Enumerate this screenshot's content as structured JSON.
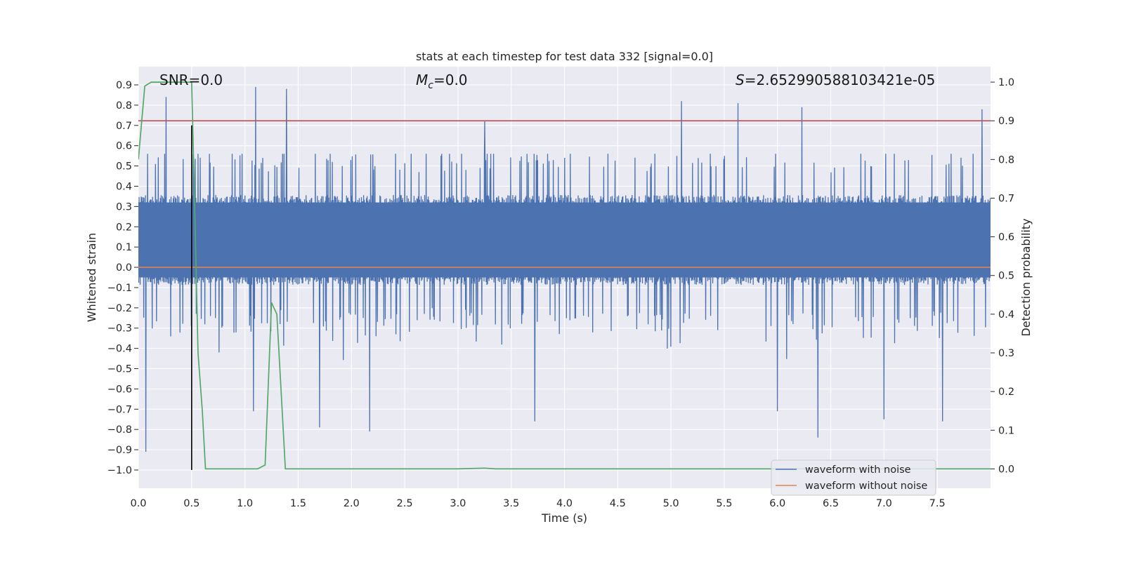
{
  "chart_data": {
    "type": "line",
    "title": "stats at each timestep for test data 332 [signal=0.0]",
    "xlabel": "Time (s)",
    "ylabel": "Whitened strain",
    "y2label": "Detection probability",
    "xlim": [
      0.0,
      8.0
    ],
    "ylim": [
      -1.09,
      0.99
    ],
    "y2lim": [
      -0.05,
      1.04
    ],
    "x_ticks": [
      0.0,
      0.5,
      1.0,
      1.5,
      2.0,
      2.5,
      3.0,
      3.5,
      4.0,
      4.5,
      5.0,
      5.5,
      6.0,
      6.5,
      7.0,
      7.5
    ],
    "x_tick_labels": [
      "0.0",
      "0.5",
      "1.0",
      "1.5",
      "2.0",
      "2.5",
      "3.0",
      "3.5",
      "4.0",
      "4.5",
      "5.0",
      "5.5",
      "6.0",
      "6.5",
      "7.0",
      "7.5"
    ],
    "y_ticks": [
      0.9,
      0.8,
      0.7,
      0.6,
      0.5,
      0.4,
      0.3,
      0.2,
      0.1,
      0.0,
      -0.1,
      -0.2,
      -0.3,
      -0.4,
      -0.5,
      -0.6,
      -0.7,
      -0.8,
      -0.9,
      -1.0
    ],
    "y_tick_labels": [
      "0.9",
      "0.8",
      "0.7",
      "0.6",
      "0.5",
      "0.4",
      "0.3",
      "0.2",
      "0.1",
      "0.0",
      "−0.1",
      "−0.2",
      "−0.3",
      "−0.4",
      "−0.5",
      "−0.6",
      "−0.7",
      "−0.8",
      "−0.9",
      "−1.0"
    ],
    "y2_ticks": [
      1.0,
      0.9,
      0.8,
      0.7,
      0.6,
      0.5,
      0.4,
      0.3,
      0.2,
      0.1,
      0.0
    ],
    "y2_tick_labels": [
      "1.0",
      "0.9",
      "0.8",
      "0.7",
      "0.6",
      "0.5",
      "0.4",
      "0.3",
      "0.2",
      "0.1",
      "0.0"
    ],
    "annotations": {
      "snr_prefix": "SNR=",
      "snr_value": "0.0",
      "mc_symbol": "M",
      "mc_subscript": "c",
      "mc_value": "=0.0",
      "s_symbol": "S",
      "s_value": "=2.652990588103421e-05"
    },
    "colors": {
      "noise": "#4c72b0",
      "clean": "#dd8452",
      "probability": "#55a868",
      "threshold": "#c44e52",
      "marker": "#000000",
      "axes_bg": "#eaeaf2",
      "grid": "#ffffff"
    },
    "legend_location": "lower right",
    "series": [
      {
        "name": "waveform with noise",
        "axis": "left",
        "kind": "dense noise",
        "core_band": [
          -0.05,
          0.32
        ],
        "typical_envelope": [
          -0.45,
          0.5
        ],
        "peaks": [
          {
            "x": 0.07,
            "y": 0.78
          },
          {
            "x": 0.26,
            "y": 0.84
          },
          {
            "x": 1.1,
            "y": 0.89
          },
          {
            "x": 1.39,
            "y": 0.88
          },
          {
            "x": 3.25,
            "y": 0.72
          },
          {
            "x": 5.1,
            "y": 0.82
          },
          {
            "x": 5.63,
            "y": 0.81
          },
          {
            "x": 6.23,
            "y": 0.79
          },
          {
            "x": 7.92,
            "y": 0.78
          }
        ],
        "troughs": [
          {
            "x": 0.07,
            "y": -0.91
          },
          {
            "x": 1.08,
            "y": -0.71
          },
          {
            "x": 1.7,
            "y": -0.79
          },
          {
            "x": 2.17,
            "y": -0.81
          },
          {
            "x": 3.72,
            "y": -0.76
          },
          {
            "x": 6.0,
            "y": -0.71
          },
          {
            "x": 6.38,
            "y": -0.84
          },
          {
            "x": 7.0,
            "y": -0.75
          },
          {
            "x": 7.55,
            "y": -0.76
          }
        ]
      },
      {
        "name": "waveform without noise",
        "axis": "left",
        "x": [
          0.0,
          8.0
        ],
        "values": [
          0.0,
          0.0
        ]
      },
      {
        "name": "detection probability",
        "axis": "right",
        "x": [
          0.0,
          0.06,
          0.12,
          0.18,
          0.5,
          0.52,
          0.56,
          0.6,
          0.63,
          0.75,
          1.0,
          1.12,
          1.19,
          1.25,
          1.3,
          1.34,
          1.38,
          1.5,
          3.0,
          3.25,
          3.35,
          5.0,
          8.0
        ],
        "values": [
          0.8,
          0.99,
          1.0,
          1.0,
          1.0,
          0.78,
          0.3,
          0.15,
          0.0,
          0.0,
          0.0,
          0.0,
          0.01,
          0.43,
          0.4,
          0.2,
          0.0,
          0.0,
          0.0,
          0.002,
          0.0,
          0.0,
          0.0
        ]
      },
      {
        "name": "threshold",
        "axis": "right",
        "x": [
          0.0,
          8.0
        ],
        "values": [
          0.9,
          0.9
        ]
      }
    ],
    "vertical_marker": {
      "x": 0.5,
      "y_from": -1.0,
      "y_to": 0.7
    },
    "legend": [
      {
        "label": "waveform with noise",
        "color_key": "noise"
      },
      {
        "label": "waveform without noise",
        "color_key": "clean"
      }
    ]
  }
}
